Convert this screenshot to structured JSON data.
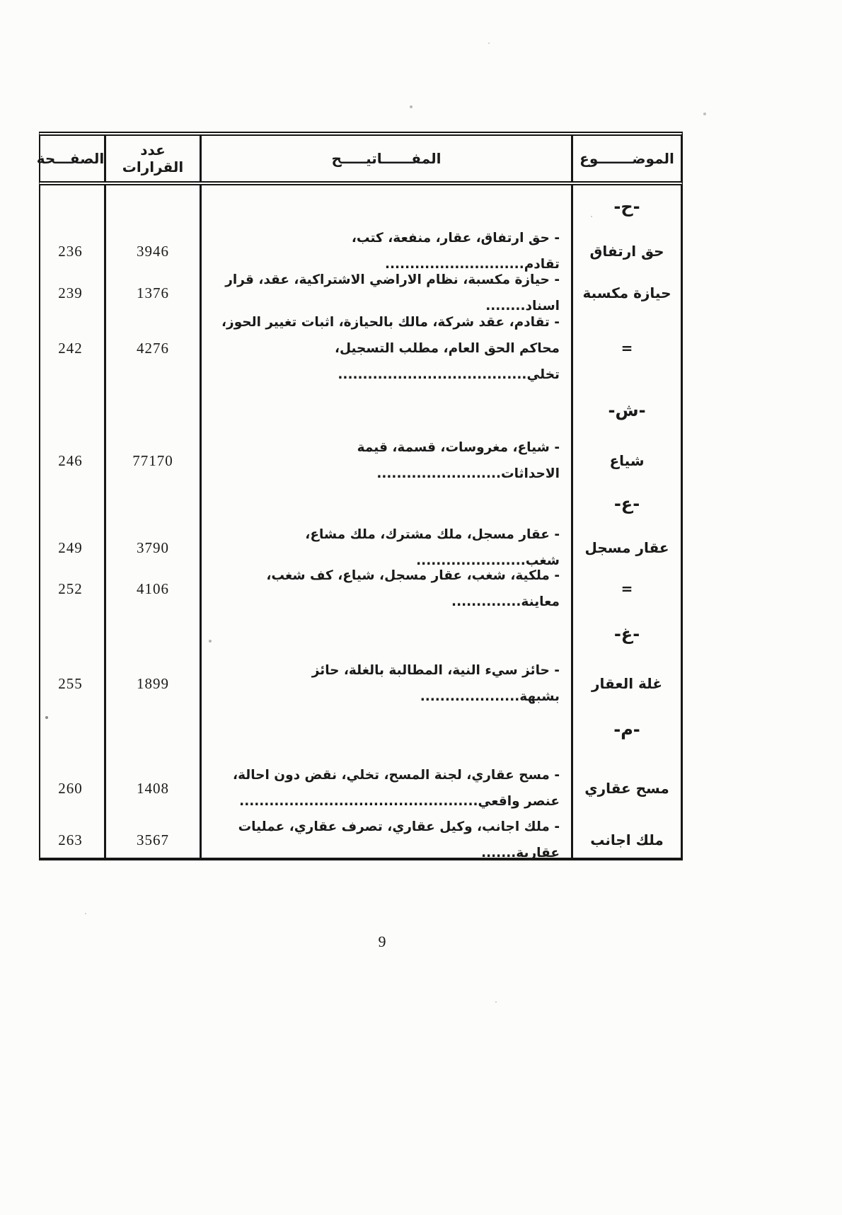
{
  "page": {
    "number": "9",
    "background": "#fcfcfa",
    "ink": "#1a1a1a"
  },
  "table": {
    "headers": {
      "subject": "الموضـــــــوع",
      "keys": "المفــــــاتيـــــح",
      "decisions": "عدد القرارات",
      "page": "الصفـــحة"
    },
    "rows": [
      {
        "type": "section",
        "subject": "-ح-",
        "keys": "",
        "decisions": "",
        "page": ""
      },
      {
        "type": "entry",
        "subject": "حق ارتفاق",
        "keys": "- حق ارتفاق، عقار، منفعة، كتب، تقادم............................",
        "decisions": "3946",
        "page": "236"
      },
      {
        "type": "entry",
        "subject": "حيازة مكسبة",
        "keys": "- حيازة مكسبة، نظام الاراضي الاشتراكية، عقد، قرار اسناد........",
        "decisions": "1376",
        "page": "239"
      },
      {
        "type": "entry",
        "subject": "=",
        "keys": "- تقادم، عقد شركة، مالك بالحيازة، اثبات تغيير الحوز، محاكم الحق العام، مطلب التسجيل، تخلي......................................",
        "decisions": "4276",
        "page": "242"
      },
      {
        "type": "section",
        "subject": "-ش-",
        "keys": "",
        "decisions": "",
        "page": ""
      },
      {
        "type": "entry",
        "subject": "شياع",
        "keys": "- شياع، مغروسات، قسمة، قيمة الاحداثات.........................",
        "decisions": "77170",
        "page": "246"
      },
      {
        "type": "section",
        "subject": "-ع-",
        "keys": "",
        "decisions": "",
        "page": ""
      },
      {
        "type": "entry",
        "subject": "عقار مسجل",
        "keys": "- عقار مسجل، ملك مشترك، ملك مشاع، شغب......................",
        "decisions": "3790",
        "page": "249"
      },
      {
        "type": "entry",
        "subject": "=",
        "keys": "- ملكية، شغب، عقار مسجل، شياع، كف شغب، معاينة..............",
        "decisions": "4106",
        "page": "252"
      },
      {
        "type": "section",
        "subject": "-غ-",
        "keys": "",
        "decisions": "",
        "page": ""
      },
      {
        "type": "entry",
        "subject": "غلة العقار",
        "keys": "- حائز سيء النية، المطالبة بالغلة، حائز بشبهة....................",
        "decisions": "1899",
        "page": "255"
      },
      {
        "type": "section",
        "subject": "-م-",
        "keys": "",
        "decisions": "",
        "page": ""
      },
      {
        "type": "entry",
        "subject": "مسح عقاري",
        "keys": "- مسح عقاري، لجنة المسح، تخلي، نقض دون احالة، عنصر واقعي................................................",
        "decisions": "1408",
        "page": "260"
      },
      {
        "type": "entry",
        "subject": "ملك اجانب",
        "keys": "- ملك اجانب، وكيل عقاري، تصرف عقاري، عمليات عقارية.......",
        "decisions": "3567",
        "page": "263"
      }
    ]
  }
}
